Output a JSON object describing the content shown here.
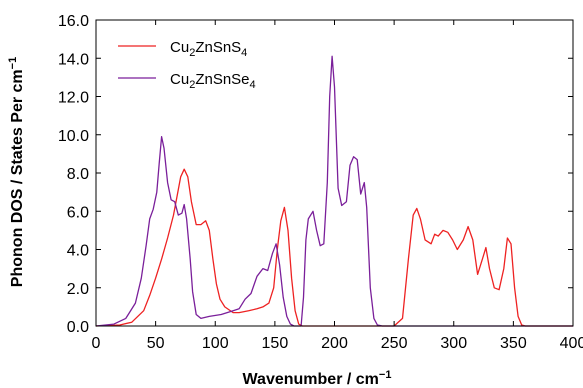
{
  "chart_data": {
    "type": "line",
    "title": "",
    "xlabel": "Wavenumber / cm",
    "xlabel_superscript": "−1",
    "ylabel": "Phonon DOS / States Per cm",
    "ylabel_superscript": "−1",
    "xlim": [
      0,
      400
    ],
    "ylim": [
      0,
      16
    ],
    "xticks": [
      0,
      50,
      100,
      150,
      200,
      250,
      300,
      350,
      400
    ],
    "yticks": [
      0.0,
      2.0,
      4.0,
      6.0,
      8.0,
      10.0,
      12.0,
      14.0,
      16.0
    ],
    "xtick_labels": [
      "0",
      "50",
      "100",
      "150",
      "200",
      "250",
      "300",
      "350",
      "400"
    ],
    "ytick_labels": [
      "0.0",
      "2.0",
      "4.0",
      "6.0",
      "8.0",
      "10.0",
      "12.0",
      "14.0",
      "16.0"
    ],
    "grid": false,
    "legend_position": "top-left",
    "series": [
      {
        "name_parts": [
          "Cu",
          "2",
          "ZnSnS",
          "4"
        ],
        "color": "#ee2222",
        "points": [
          [
            0,
            0
          ],
          [
            20,
            0.05
          ],
          [
            30,
            0.2
          ],
          [
            40,
            0.8
          ],
          [
            45,
            1.6
          ],
          [
            50,
            2.5
          ],
          [
            55,
            3.5
          ],
          [
            60,
            4.6
          ],
          [
            65,
            5.8
          ],
          [
            68,
            6.8
          ],
          [
            71,
            7.8
          ],
          [
            74,
            8.2
          ],
          [
            77,
            7.8
          ],
          [
            80,
            6.5
          ],
          [
            84,
            5.3
          ],
          [
            88,
            5.3
          ],
          [
            92,
            5.5
          ],
          [
            95,
            5.0
          ],
          [
            98,
            3.5
          ],
          [
            101,
            2.2
          ],
          [
            104,
            1.4
          ],
          [
            108,
            1.0
          ],
          [
            115,
            0.7
          ],
          [
            120,
            0.7
          ],
          [
            128,
            0.8
          ],
          [
            135,
            0.9
          ],
          [
            140,
            1.0
          ],
          [
            145,
            1.2
          ],
          [
            149,
            2.0
          ],
          [
            152,
            4.0
          ],
          [
            155,
            5.5
          ],
          [
            158,
            6.2
          ],
          [
            161,
            5.0
          ],
          [
            164,
            2.5
          ],
          [
            167,
            0.8
          ],
          [
            170,
            0.1
          ],
          [
            173,
            0
          ],
          [
            250,
            0
          ],
          [
            257,
            0.4
          ],
          [
            262,
            3.5
          ],
          [
            266,
            5.8
          ],
          [
            269,
            6.15
          ],
          [
            272,
            5.6
          ],
          [
            276,
            4.5
          ],
          [
            281,
            4.3
          ],
          [
            284,
            4.8
          ],
          [
            287,
            4.7
          ],
          [
            291,
            5.0
          ],
          [
            295,
            4.9
          ],
          [
            299,
            4.5
          ],
          [
            303,
            4.0
          ],
          [
            308,
            4.5
          ],
          [
            312,
            5.2
          ],
          [
            316,
            4.5
          ],
          [
            320,
            2.7
          ],
          [
            324,
            3.5
          ],
          [
            327,
            4.1
          ],
          [
            330,
            3.0
          ],
          [
            334,
            2.0
          ],
          [
            338,
            1.9
          ],
          [
            342,
            3.0
          ],
          [
            345,
            4.6
          ],
          [
            348,
            4.3
          ],
          [
            351,
            2.0
          ],
          [
            354,
            0.5
          ],
          [
            357,
            0.05
          ],
          [
            360,
            0
          ],
          [
            400,
            0
          ]
        ]
      },
      {
        "name_parts": [
          "Cu",
          "2",
          "ZnSnSe",
          "4"
        ],
        "color": "#7a1f9a",
        "points": [
          [
            0,
            0
          ],
          [
            15,
            0.1
          ],
          [
            25,
            0.4
          ],
          [
            33,
            1.2
          ],
          [
            38,
            2.5
          ],
          [
            42,
            4.2
          ],
          [
            45,
            5.6
          ],
          [
            48,
            6.1
          ],
          [
            51,
            7.0
          ],
          [
            53,
            8.5
          ],
          [
            55,
            9.9
          ],
          [
            57,
            9.3
          ],
          [
            60,
            7.5
          ],
          [
            63,
            6.6
          ],
          [
            66,
            6.5
          ],
          [
            69,
            5.8
          ],
          [
            72,
            5.9
          ],
          [
            74,
            6.35
          ],
          [
            76,
            5.6
          ],
          [
            79,
            3.5
          ],
          [
            81,
            1.8
          ],
          [
            84,
            0.6
          ],
          [
            88,
            0.4
          ],
          [
            95,
            0.5
          ],
          [
            105,
            0.6
          ],
          [
            115,
            0.8
          ],
          [
            120,
            0.9
          ],
          [
            125,
            1.4
          ],
          [
            130,
            1.7
          ],
          [
            135,
            2.6
          ],
          [
            140,
            3.0
          ],
          [
            144,
            2.9
          ],
          [
            148,
            3.8
          ],
          [
            151,
            4.3
          ],
          [
            154,
            3.2
          ],
          [
            157,
            1.5
          ],
          [
            160,
            0.5
          ],
          [
            163,
            0.1
          ],
          [
            166,
            0
          ],
          [
            172,
            0
          ],
          [
            174,
            1.5
          ],
          [
            176,
            4.5
          ],
          [
            178,
            5.6
          ],
          [
            182,
            6.0
          ],
          [
            185,
            5.0
          ],
          [
            188,
            4.2
          ],
          [
            191,
            4.3
          ],
          [
            194,
            7.5
          ],
          [
            196,
            12.0
          ],
          [
            198,
            14.1
          ],
          [
            200,
            12.5
          ],
          [
            203,
            7.2
          ],
          [
            206,
            6.3
          ],
          [
            210,
            6.5
          ],
          [
            213,
            8.4
          ],
          [
            216,
            8.85
          ],
          [
            219,
            8.7
          ],
          [
            222,
            6.9
          ],
          [
            225,
            7.5
          ],
          [
            227,
            6.2
          ],
          [
            230,
            2.0
          ],
          [
            233,
            0.4
          ],
          [
            236,
            0.05
          ],
          [
            240,
            0
          ],
          [
            400,
            0
          ]
        ]
      }
    ]
  }
}
